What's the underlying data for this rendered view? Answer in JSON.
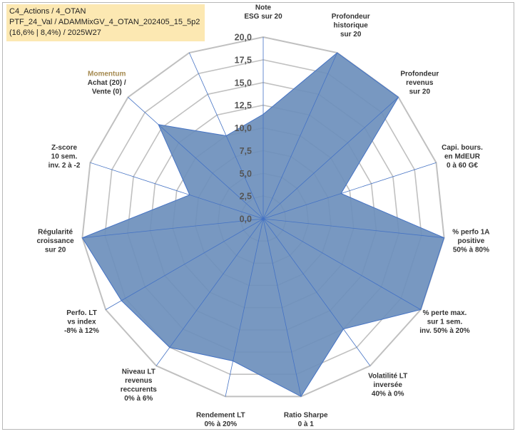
{
  "info_box": {
    "line1": "C4_Actions / 4_OTAN",
    "line2": "PTF_24_Val / ADAMMixGV_4_OTAN_202405_15_5p2",
    "line3": "(16,6% | 8,4%) / 2025W27"
  },
  "colors": {
    "fill": "#6d8fbc",
    "stroke": "#4472c4",
    "grid": "#c0c0c0",
    "spoke": "#4472c4",
    "info_bg": "#fce8b2"
  },
  "chart_data": {
    "type": "radar",
    "r_min": 0,
    "r_max": 20,
    "ticks": [
      "0,0",
      "2,5",
      "5,0",
      "7,5",
      "10,0",
      "12,5",
      "15,0",
      "17,5",
      "20,0"
    ],
    "tick_values": [
      0,
      2.5,
      5,
      7.5,
      10,
      12.5,
      15,
      17.5,
      20
    ],
    "axes": [
      {
        "label": [
          "Note",
          "ESG sur 20"
        ],
        "value": 11.5
      },
      {
        "label": [
          "Profondeur",
          "historique",
          "sur 20"
        ],
        "value": 20
      },
      {
        "label": [
          "Profondeur",
          "revenus",
          "sur 20"
        ],
        "value": 20
      },
      {
        "label": [
          "Capi. bours.",
          "en MdEUR",
          "0 à 60 G€"
        ],
        "value": 9
      },
      {
        "label": [
          "% perfo 1A",
          "positive",
          "50% à 80%"
        ],
        "value": 20
      },
      {
        "label": [
          "% perte max.",
          "sur 1 sem.",
          "inv. 50% à 20%"
        ],
        "value": 20
      },
      {
        "label": [
          "Volatilité LT",
          "inversée",
          "40% à 0%"
        ],
        "value": 15
      },
      {
        "label": [
          "Ratio Sharpe",
          "0 à 1"
        ],
        "value": 20
      },
      {
        "label": [
          "Rendement LT",
          "0% à 20%"
        ],
        "value": 16
      },
      {
        "label": [
          "Niveau LT",
          "revenus",
          "reccurents",
          "0% à 6%"
        ],
        "value": 17.5
      },
      {
        "label": [
          "Perfo. LT",
          "vs index",
          "-8% à 12%"
        ],
        "value": 18
      },
      {
        "label": [
          "Régularité",
          "croissance",
          "sur 20"
        ],
        "value": 20
      },
      {
        "label": [
          "Z-score",
          "10 sem.",
          "inv. 2 à -2"
        ],
        "value": 8.5
      },
      {
        "label": [
          "Momentum",
          "Achat (20) /",
          "Vente (0)"
        ],
        "value": 15.5
      },
      {
        "label": [],
        "value": 10
      }
    ]
  }
}
